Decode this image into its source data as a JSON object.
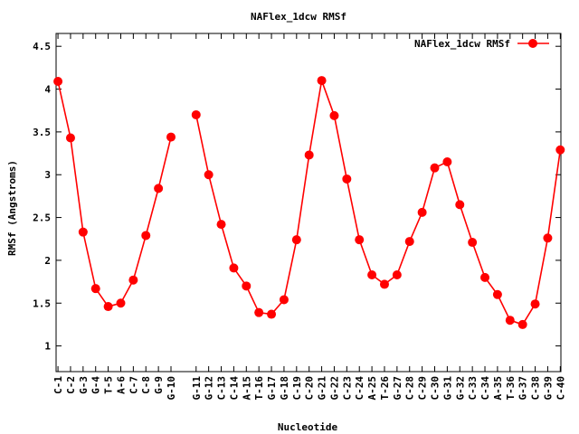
{
  "chart_data": {
    "type": "line",
    "title": "NAFlex_1dcw RMSf",
    "xlabel": "Nucleotide",
    "ylabel": "RMSf (Angstroms)",
    "ylim": [
      0.7,
      4.65
    ],
    "yticks": [
      "1",
      "1.5",
      "2",
      "2.5",
      "3",
      "3.5",
      "4",
      "4.5"
    ],
    "ytick_values": [
      1,
      1.5,
      2,
      2.5,
      3,
      3.5,
      4,
      4.5
    ],
    "grid": false,
    "legend": "top-right",
    "color": "#ff0000",
    "categories": [
      "C-1",
      "C-2",
      "G-3",
      "G-4",
      "T-5",
      "A-6",
      "C-7",
      "C-8",
      "G-9",
      "G-10",
      "G-11",
      "G-12",
      "C-13",
      "C-14",
      "A-15",
      "T-16",
      "G-17",
      "G-18",
      "C-19",
      "C-20",
      "G-21",
      "G-22",
      "C-23",
      "C-24",
      "A-25",
      "T-26",
      "G-27",
      "C-28",
      "C-29",
      "C-30",
      "G-31",
      "G-32",
      "C-33",
      "C-34",
      "A-35",
      "T-36",
      "G-37",
      "C-38",
      "G-39",
      "C-40"
    ],
    "x": [
      1,
      2,
      3,
      4,
      5,
      6,
      7,
      8,
      9,
      10,
      12,
      13,
      14,
      15,
      16,
      17,
      18,
      19,
      20,
      21,
      22,
      23,
      24,
      25,
      26,
      27,
      28,
      29,
      30,
      31,
      32,
      33,
      34,
      35,
      36,
      37,
      38,
      39,
      40,
      41
    ],
    "series": [
      {
        "name": "NAFlex_1dcw RMSf",
        "values": [
          4.09,
          3.43,
          2.33,
          1.67,
          1.46,
          1.5,
          1.77,
          2.29,
          2.84,
          3.44,
          3.7,
          3.0,
          2.42,
          1.91,
          1.7,
          1.39,
          1.37,
          1.54,
          2.24,
          3.23,
          4.1,
          3.69,
          2.95,
          2.24,
          1.83,
          1.72,
          1.83,
          2.22,
          2.56,
          3.08,
          3.15,
          2.65,
          2.21,
          1.8,
          1.6,
          1.3,
          1.25,
          1.49,
          2.26,
          3.29
        ],
        "segments": [
          [
            0,
            10
          ],
          [
            10,
            40
          ]
        ]
      }
    ]
  }
}
